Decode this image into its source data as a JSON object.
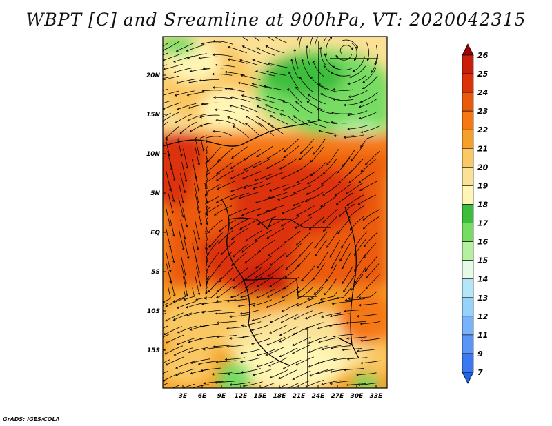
{
  "title": "WBPT [C] and Sreamline at 900hPa, VT: 2020042315",
  "credit": "GrADS: IGES/COLA",
  "map": {
    "lat_labels": [
      "20N",
      "15N",
      "10N",
      "5N",
      "EQ",
      "5S",
      "10S",
      "15S"
    ],
    "lon_labels": [
      "3E",
      "6E",
      "9E",
      "12E",
      "15E",
      "18E",
      "21E",
      "24E",
      "27E",
      "30E",
      "33E"
    ],
    "variable": "Wet-bulb potential temperature",
    "units": "C",
    "level": "900hPa"
  },
  "colorbar": {
    "levels": [
      "7",
      "9",
      "11",
      "12",
      "13",
      "14",
      "15",
      "16",
      "17",
      "18",
      "19",
      "20",
      "21",
      "22",
      "23",
      "24",
      "25",
      "26"
    ],
    "colors": [
      "#1e64e6",
      "#3c78f0",
      "#5a96f5",
      "#78b4fa",
      "#96d2fa",
      "#b4e6fa",
      "#e6fae6",
      "#b4f0a0",
      "#78dc64",
      "#3cbe3c",
      "#fff5b4",
      "#fae196",
      "#fac864",
      "#f5a028",
      "#f57814",
      "#eb5a0a",
      "#dc320a",
      "#c81e0a",
      "#a00000"
    ]
  }
}
